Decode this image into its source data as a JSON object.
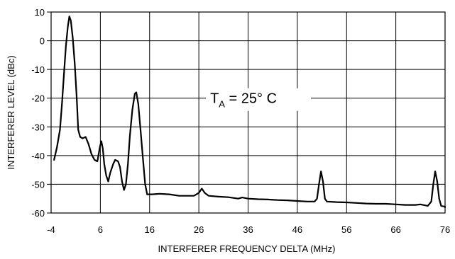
{
  "chart_data": {
    "type": "line",
    "xlabel": "INTERFERER FREQUENCY DELTA (MHz)",
    "ylabel": "INTERFERER LEVEL (dBc)",
    "xlim": [
      -4,
      76
    ],
    "ylim": [
      -60,
      10
    ],
    "x_ticks": [
      -4,
      6,
      16,
      26,
      36,
      46,
      56,
      66,
      76
    ],
    "y_ticks": [
      10,
      0,
      -10,
      -20,
      -30,
      -40,
      -50,
      -60
    ],
    "grid": true,
    "annotation": {
      "main": "T",
      "sub": "A",
      "rest": " = 25° C"
    },
    "series": [
      {
        "points": [
          [
            -3.4,
            -41.5
          ],
          [
            -2.8,
            -37
          ],
          [
            -2.2,
            -31
          ],
          [
            -1.8,
            -22
          ],
          [
            -1.4,
            -12
          ],
          [
            -1.0,
            -2
          ],
          [
            -0.6,
            5
          ],
          [
            -0.3,
            8.5
          ],
          [
            0.0,
            7
          ],
          [
            0.4,
            1
          ],
          [
            0.8,
            -8
          ],
          [
            1.2,
            -20
          ],
          [
            1.5,
            -31
          ],
          [
            1.9,
            -33.5
          ],
          [
            2.4,
            -34
          ],
          [
            3.0,
            -33.5
          ],
          [
            3.6,
            -36
          ],
          [
            4.2,
            -39.5
          ],
          [
            4.8,
            -41.5
          ],
          [
            5.4,
            -42
          ],
          [
            5.9,
            -37
          ],
          [
            6.2,
            -35
          ],
          [
            6.5,
            -37.5
          ],
          [
            6.8,
            -43
          ],
          [
            7.2,
            -47
          ],
          [
            7.6,
            -49
          ],
          [
            8.0,
            -46
          ],
          [
            8.6,
            -43
          ],
          [
            9.0,
            -41.5
          ],
          [
            9.6,
            -42
          ],
          [
            10.0,
            -44
          ],
          [
            10.4,
            -49
          ],
          [
            10.8,
            -52
          ],
          [
            11.2,
            -50
          ],
          [
            11.6,
            -43
          ],
          [
            12.0,
            -33
          ],
          [
            12.5,
            -24
          ],
          [
            13.0,
            -18.5
          ],
          [
            13.3,
            -18
          ],
          [
            13.7,
            -22
          ],
          [
            14.2,
            -32
          ],
          [
            14.7,
            -42
          ],
          [
            15.1,
            -50
          ],
          [
            15.5,
            -53.5
          ],
          [
            16.5,
            -53.5
          ],
          [
            18,
            -53.3
          ],
          [
            20,
            -53.5
          ],
          [
            22,
            -54
          ],
          [
            24,
            -54
          ],
          [
            25,
            -54
          ],
          [
            26,
            -53
          ],
          [
            26.6,
            -51.5
          ],
          [
            27.2,
            -53
          ],
          [
            28,
            -54
          ],
          [
            30,
            -54.3
          ],
          [
            32,
            -54.5
          ],
          [
            34,
            -55
          ],
          [
            34.8,
            -54.6
          ],
          [
            36,
            -55
          ],
          [
            38,
            -55.2
          ],
          [
            40,
            -55.3
          ],
          [
            42,
            -55.5
          ],
          [
            44,
            -55.6
          ],
          [
            46,
            -55.8
          ],
          [
            48,
            -56
          ],
          [
            49.5,
            -56
          ],
          [
            50,
            -55
          ],
          [
            50.4,
            -50
          ],
          [
            50.8,
            -45.5
          ],
          [
            51.2,
            -49
          ],
          [
            51.6,
            -55
          ],
          [
            52,
            -56
          ],
          [
            54,
            -56.2
          ],
          [
            56,
            -56.3
          ],
          [
            58,
            -56.5
          ],
          [
            60,
            -56.7
          ],
          [
            62,
            -56.8
          ],
          [
            64,
            -56.8
          ],
          [
            66,
            -57
          ],
          [
            68,
            -57.2
          ],
          [
            70,
            -57.2
          ],
          [
            71,
            -57
          ],
          [
            72.5,
            -57.5
          ],
          [
            73.2,
            -56
          ],
          [
            73.6,
            -50
          ],
          [
            74.0,
            -45.5
          ],
          [
            74.4,
            -49
          ],
          [
            74.8,
            -55
          ],
          [
            75.2,
            -57.5
          ],
          [
            76,
            -57.8
          ],
          [
            77.5,
            -58
          ]
        ]
      }
    ]
  }
}
